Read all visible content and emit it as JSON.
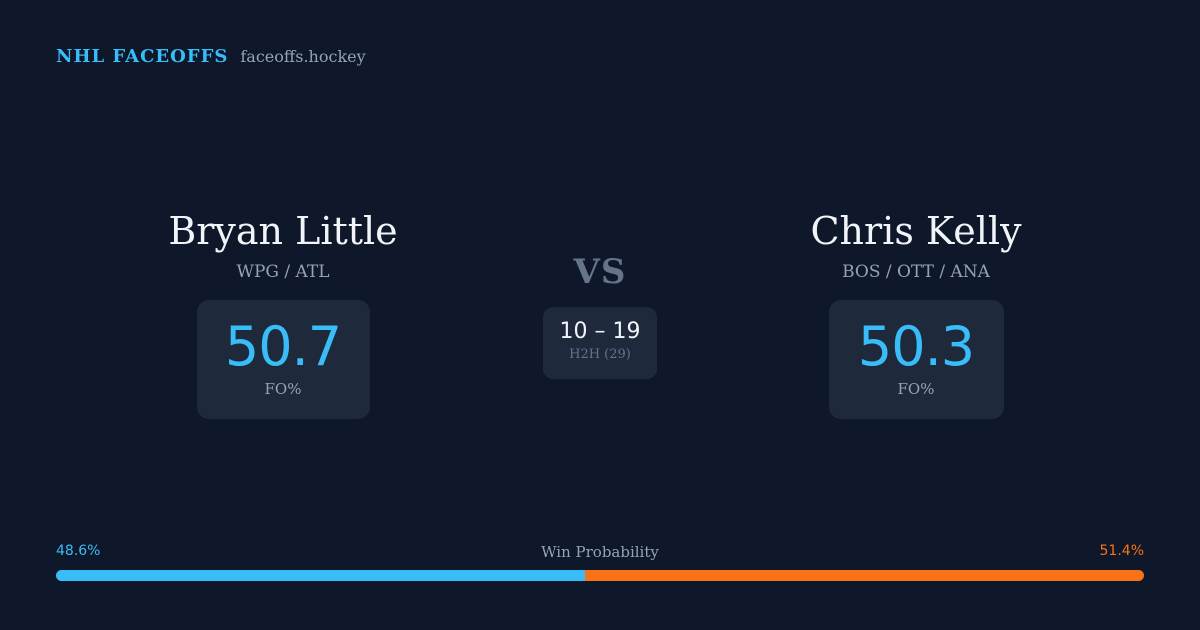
{
  "header": {
    "brand": "NHL FACEOFFS",
    "site": "faceoffs.hockey"
  },
  "player_left": {
    "name": "Bryan Little",
    "teams": "WPG / ATL",
    "fo_pct": "50.7",
    "fo_label": "FO%"
  },
  "player_right": {
    "name": "Chris Kelly",
    "teams": "BOS / OTT / ANA",
    "fo_pct": "50.3",
    "fo_label": "FO%"
  },
  "matchup": {
    "vs": "VS",
    "h2h_score": "10 – 19",
    "h2h_label": "H2H (29)"
  },
  "win_probability": {
    "title": "Win Probability",
    "left_pct_text": "48.6%",
    "right_pct_text": "51.4%",
    "left_fraction": 0.486,
    "right_fraction": 0.514,
    "left_color": "#38bdf8",
    "right_color": "#f97316"
  },
  "colors": {
    "background": "#0f172a",
    "card": "#1e293b",
    "accent": "#38bdf8",
    "muted": "#94a3b8"
  }
}
